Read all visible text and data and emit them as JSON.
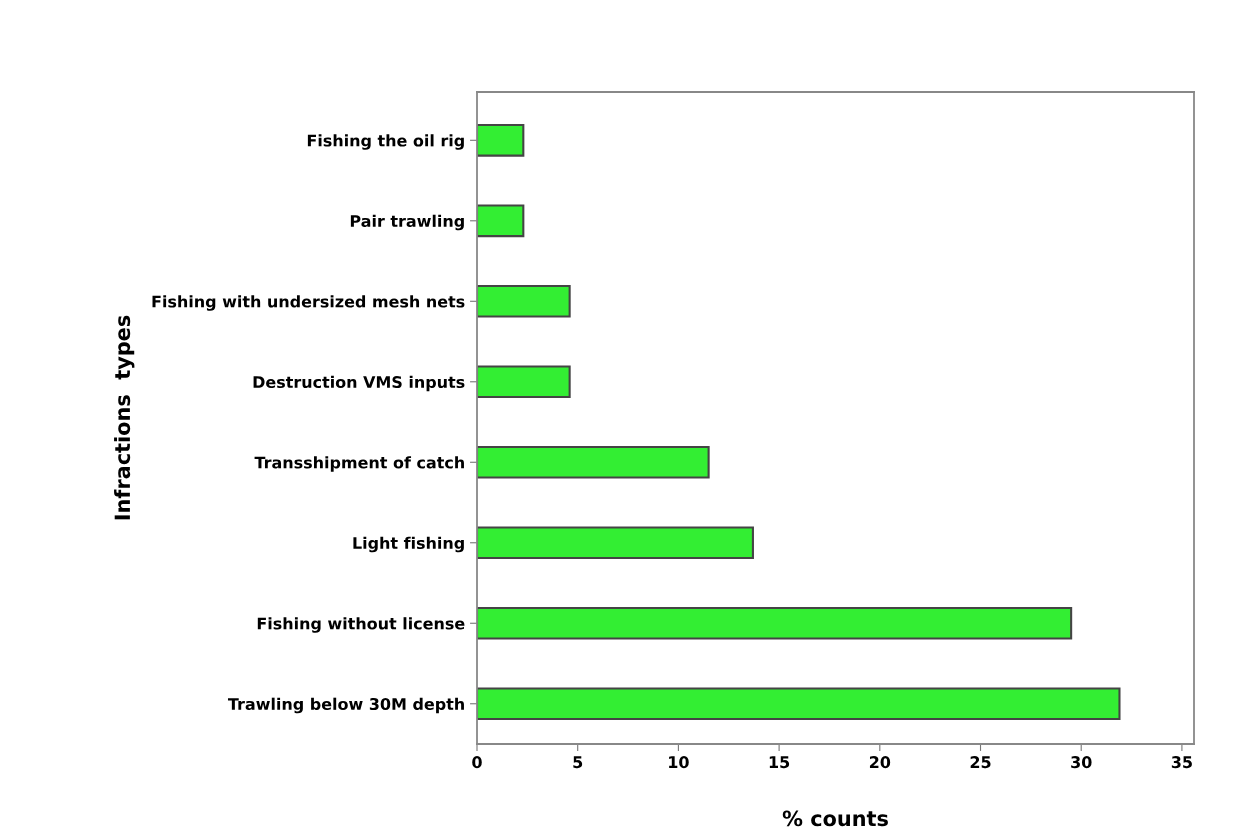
{
  "chart_data": {
    "type": "bar",
    "orientation": "horizontal",
    "xlabel": "% counts",
    "ylabel": "Infractions  types",
    "categories": [
      "Fishing the oil rig",
      "Pair trawling",
      "Fishing with undersized mesh nets",
      "Destruction VMS inputs",
      "Transshipment of catch",
      "Light fishing",
      "Fishing without license",
      "Trawling below 30M depth"
    ],
    "values": [
      2.3,
      2.3,
      4.6,
      4.6,
      11.5,
      13.7,
      29.5,
      31.9
    ],
    "color": "#33ee33",
    "xlim": [
      0,
      35.6
    ],
    "xticks": [
      0,
      5,
      10,
      15,
      20,
      25,
      30,
      35
    ],
    "grid": false
  }
}
